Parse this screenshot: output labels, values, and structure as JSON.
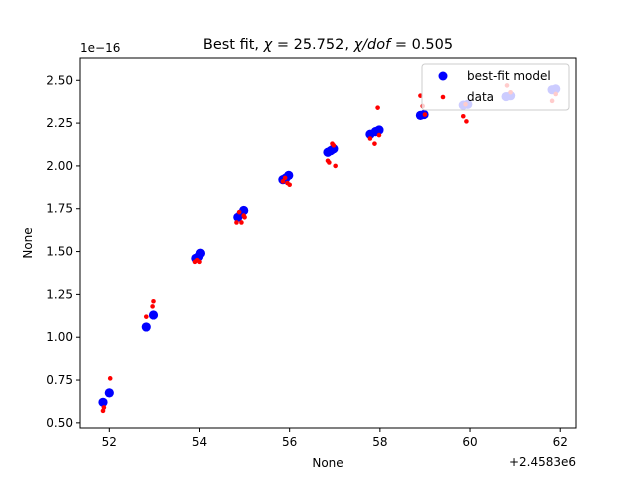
{
  "chart_data": {
    "type": "scatter",
    "title": "Best fit, χ = 25.752, χ/dof = 0.505",
    "title_parts": {
      "prefix": "Best fit, ",
      "chi_symbol": "χ",
      "chi_value": " = 25.752, ",
      "ratio_symbol": "χ/dof",
      "ratio_value": " = 0.505"
    },
    "xlabel": "None",
    "ylabel": "None",
    "x_offset_label": "+2.4583e6",
    "y_scale_label": "1e−16",
    "xlim": [
      51.35,
      62.35
    ],
    "ylim": [
      0.47,
      2.63
    ],
    "xticks": [
      52,
      54,
      56,
      58,
      60,
      62
    ],
    "xtick_labels": [
      "52",
      "54",
      "56",
      "58",
      "60",
      "62"
    ],
    "yticks": [
      0.5,
      0.75,
      1.0,
      1.25,
      1.5,
      1.75,
      2.0,
      2.25,
      2.5
    ],
    "ytick_labels": [
      "0.50",
      "0.75",
      "1.00",
      "1.25",
      "1.50",
      "1.75",
      "2.00",
      "2.25",
      "2.50"
    ],
    "grid": false,
    "legend_position": "top-right",
    "series": [
      {
        "name": "best-fit model",
        "color": "#0000ff",
        "marker": "large-circle",
        "points": [
          [
            51.86,
            0.62
          ],
          [
            52.0,
            0.675
          ],
          [
            52.82,
            1.06
          ],
          [
            52.98,
            1.13
          ],
          [
            53.92,
            1.46
          ],
          [
            53.98,
            1.47
          ],
          [
            54.02,
            1.49
          ],
          [
            54.85,
            1.7
          ],
          [
            54.92,
            1.72
          ],
          [
            54.98,
            1.74
          ],
          [
            55.85,
            1.92
          ],
          [
            55.92,
            1.93
          ],
          [
            55.98,
            1.945
          ],
          [
            56.85,
            2.08
          ],
          [
            56.92,
            2.09
          ],
          [
            56.98,
            2.1
          ],
          [
            57.78,
            2.185
          ],
          [
            57.9,
            2.2
          ],
          [
            57.98,
            2.21
          ],
          [
            58.9,
            2.295
          ],
          [
            58.98,
            2.3
          ],
          [
            59.85,
            2.355
          ],
          [
            59.95,
            2.36
          ],
          [
            60.8,
            2.405
          ],
          [
            60.9,
            2.41
          ],
          [
            61.82,
            2.445
          ],
          [
            61.9,
            2.45
          ]
        ]
      },
      {
        "name": "data",
        "color": "#ff0000",
        "marker": "small-dot",
        "points": [
          [
            51.86,
            0.57
          ],
          [
            51.88,
            0.59
          ],
          [
            52.02,
            0.76
          ],
          [
            52.82,
            1.12
          ],
          [
            52.96,
            1.18
          ],
          [
            52.98,
            1.21
          ],
          [
            53.9,
            1.44
          ],
          [
            53.95,
            1.45
          ],
          [
            54.0,
            1.44
          ],
          [
            54.82,
            1.67
          ],
          [
            54.88,
            1.73
          ],
          [
            54.93,
            1.67
          ],
          [
            54.98,
            1.71
          ],
          [
            55.0,
            1.7
          ],
          [
            55.85,
            1.91
          ],
          [
            55.9,
            1.93
          ],
          [
            55.95,
            1.9
          ],
          [
            56.0,
            1.89
          ],
          [
            56.85,
            2.03
          ],
          [
            56.88,
            2.02
          ],
          [
            56.95,
            2.13
          ],
          [
            56.98,
            2.12
          ],
          [
            57.02,
            2.0
          ],
          [
            57.78,
            2.16
          ],
          [
            57.88,
            2.13
          ],
          [
            57.95,
            2.34
          ],
          [
            57.98,
            2.18
          ],
          [
            58.9,
            2.41
          ],
          [
            58.95,
            2.35
          ],
          [
            59.0,
            2.3
          ],
          [
            59.85,
            2.29
          ],
          [
            59.9,
            2.36
          ],
          [
            59.92,
            2.26
          ],
          [
            60.82,
            2.47
          ],
          [
            60.9,
            2.43
          ],
          [
            61.82,
            2.38
          ],
          [
            61.9,
            2.42
          ]
        ]
      }
    ]
  }
}
